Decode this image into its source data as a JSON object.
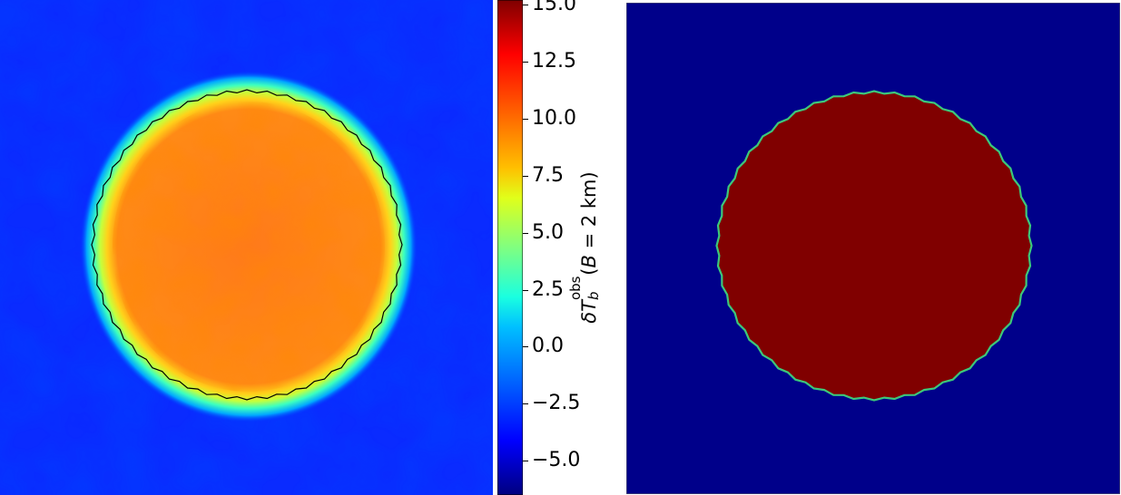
{
  "chart_data": [
    {
      "type": "heatmap",
      "panel": "left",
      "colormap": "jet",
      "background_value_range": [
        -6,
        -3
      ],
      "disc_value_range": [
        10,
        12.5
      ],
      "contour": {
        "color": "#000000"
      },
      "colorbar": {
        "label_parts": {
          "delta": "δ",
          "T": "T",
          "sup": "obs",
          "sub": "b",
          "open": "(",
          "B": "B",
          "rest": " = 2 km)"
        },
        "range": [
          -6.5,
          15.2
        ],
        "ticks": [
          "15.0",
          "12.5",
          "10.0",
          "7.5",
          "5.0",
          "2.5",
          "0.0",
          "−2.5",
          "−5.0"
        ],
        "tick_values": [
          15.0,
          12.5,
          10.0,
          7.5,
          5.0,
          2.5,
          0.0,
          -2.5,
          -5.0
        ]
      }
    },
    {
      "type": "heatmap",
      "panel": "right",
      "background_color": "#00008a",
      "disc_color": "#800000",
      "contour": {
        "color": "#3cc87a"
      }
    }
  ]
}
